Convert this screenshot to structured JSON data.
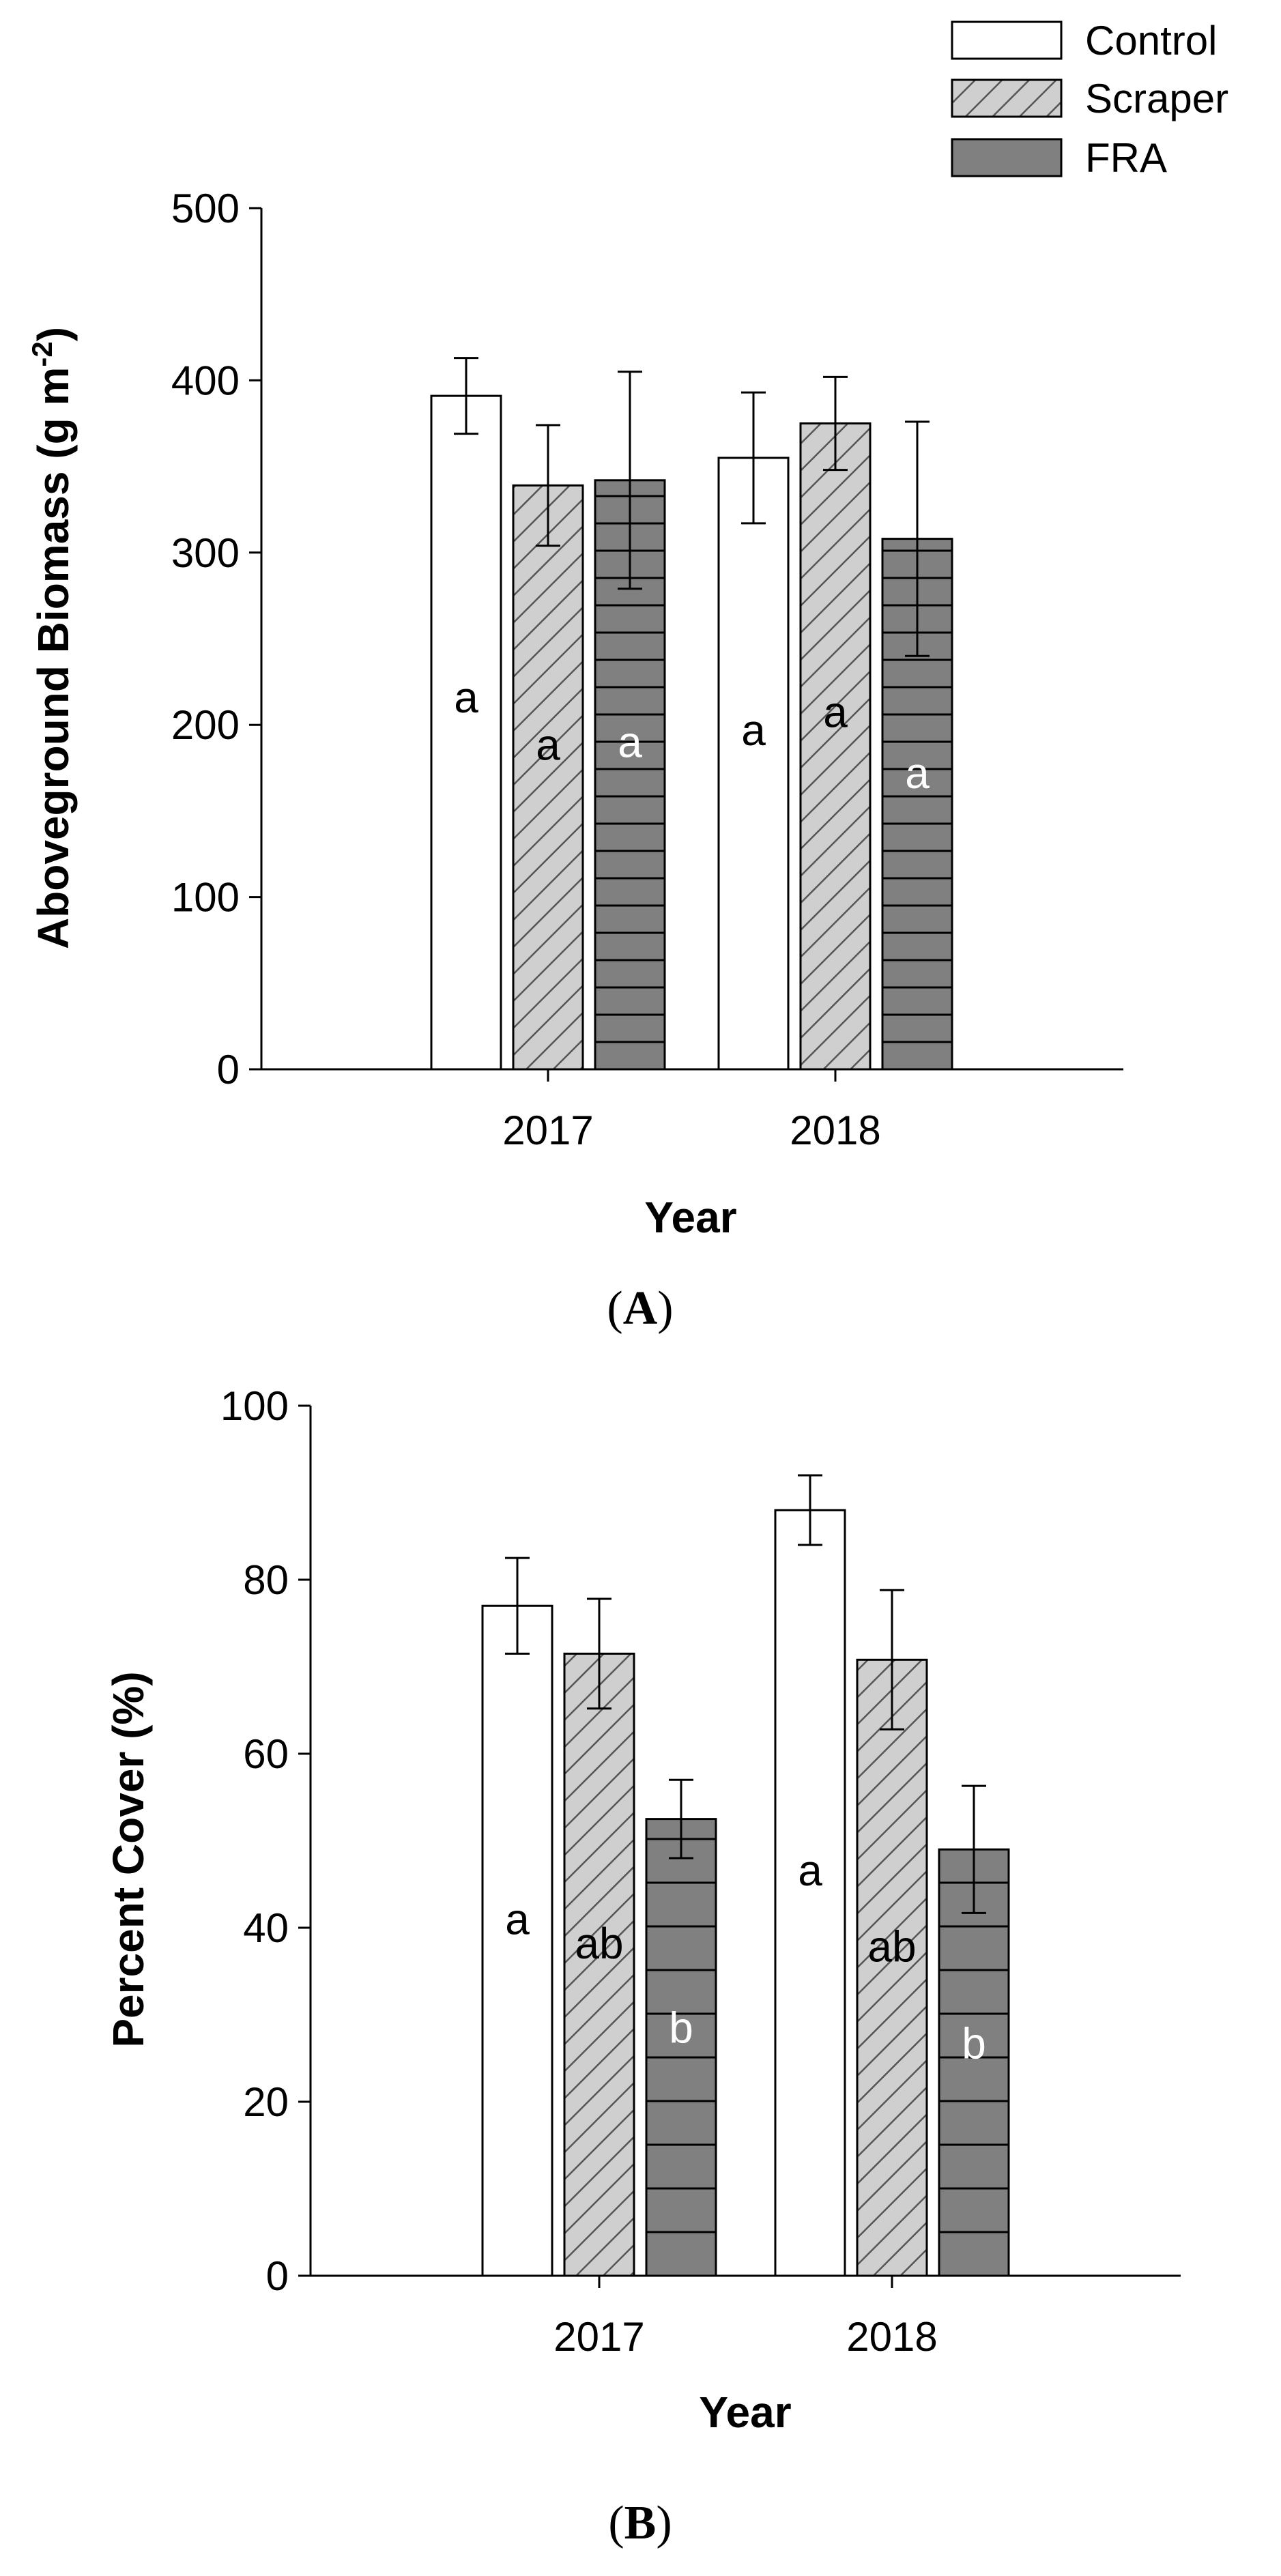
{
  "legend": [
    {
      "label": "Control",
      "fill": "#ffffff",
      "pattern": "none"
    },
    {
      "label": "Scraper",
      "fill": "#c8c8c8",
      "pattern": "diagonal"
    },
    {
      "label": "FRA",
      "fill": "#808080",
      "pattern": "horizontal"
    }
  ],
  "chart_data": [
    {
      "type": "bar",
      "panel_label": "A",
      "categories": [
        "2017",
        "2018"
      ],
      "series": [
        {
          "name": "Control",
          "values": [
            391,
            355
          ],
          "errors": [
            22,
            38
          ],
          "letters": [
            "a",
            "a"
          ]
        },
        {
          "name": "Scraper",
          "values": [
            339,
            375
          ],
          "errors": [
            35,
            27
          ],
          "letters": [
            "a",
            "a"
          ]
        },
        {
          "name": "FRA",
          "values": [
            342,
            308
          ],
          "errors": [
            63,
            68
          ],
          "letters": [
            "a",
            "a"
          ]
        }
      ],
      "xlabel": "Year",
      "ylabel": "Aboveground Biomass (g m",
      "ylabel_sup": "-2",
      "ylabel_end": ")",
      "ylim": [
        0,
        500
      ],
      "yticks": [
        "0",
        "100",
        "200",
        "300",
        "400",
        "500"
      ]
    },
    {
      "type": "bar",
      "panel_label": "B",
      "categories": [
        "2017",
        "2018"
      ],
      "series": [
        {
          "name": "Control",
          "values": [
            77,
            88
          ],
          "errors": [
            5.5,
            4
          ],
          "letters": [
            "a",
            "a"
          ]
        },
        {
          "name": "Scraper",
          "values": [
            71.5,
            70.8
          ],
          "errors": [
            6.3,
            8
          ],
          "letters": [
            "ab",
            "ab"
          ]
        },
        {
          "name": "FRA",
          "values": [
            52.5,
            49
          ],
          "errors": [
            4.5,
            7.3
          ],
          "letters": [
            "b",
            "b"
          ]
        }
      ],
      "xlabel": "Year",
      "ylabel": "Percent Cover (%)",
      "ylim": [
        0,
        100
      ],
      "yticks": [
        "0",
        "20",
        "40",
        "60",
        "80",
        "100"
      ]
    }
  ]
}
